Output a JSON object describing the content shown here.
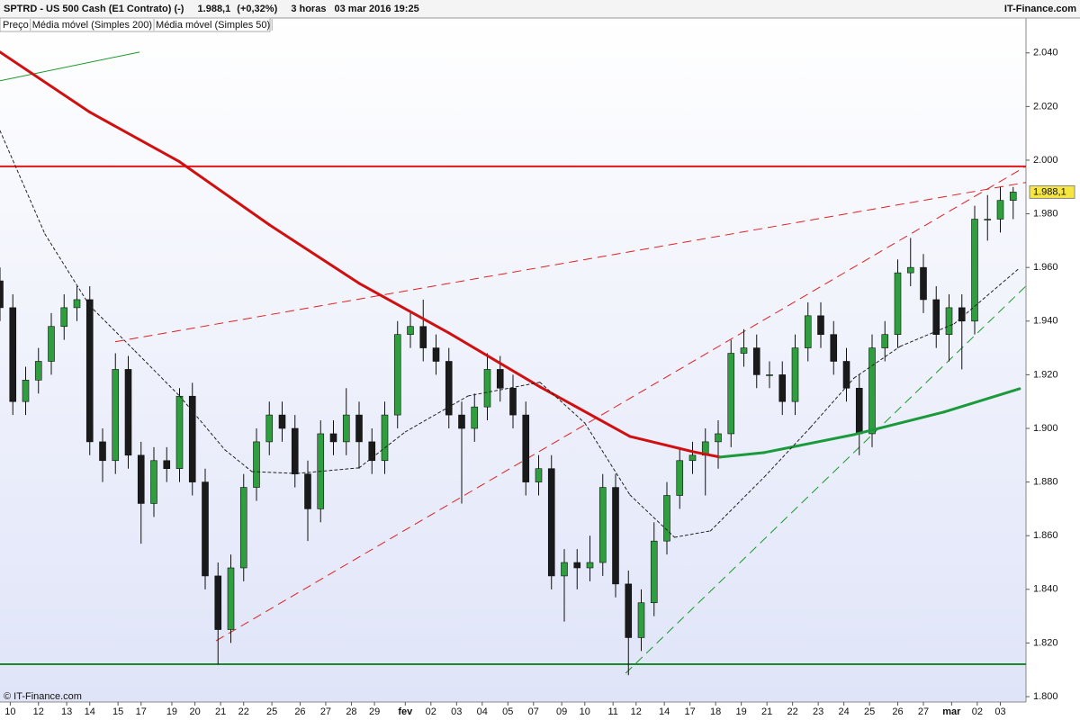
{
  "chart_data": {
    "type": "candlestick",
    "header": {
      "title": "SPTRD - US 500 Cash (E1 Contrato) (-)",
      "last": {
        "value": 1988.1,
        "label": "1.988,1"
      },
      "change": "(+0,32%)",
      "timeframe": "3 horas",
      "timestamp": "03 mar 2016 19:25",
      "brand": "IT-Finance.com"
    },
    "copyright": "© IT-Finance.com",
    "ylim": [
      1798,
      2053
    ],
    "yticks": [
      {
        "value": 1800,
        "label": "1.800"
      },
      {
        "value": 1820,
        "label": "1.820"
      },
      {
        "value": 1840,
        "label": "1.840"
      },
      {
        "value": 1860,
        "label": "1.860"
      },
      {
        "value": 1880,
        "label": "1.880"
      },
      {
        "value": 1900,
        "label": "1.900"
      },
      {
        "value": 1920,
        "label": "1.920"
      },
      {
        "value": 1940,
        "label": "1.940"
      },
      {
        "value": 1960,
        "label": "1.960"
      },
      {
        "value": 1980,
        "label": "1.980"
      },
      {
        "value": 2000,
        "label": "2.000"
      },
      {
        "value": 2020,
        "label": "2.020"
      },
      {
        "value": 2040,
        "label": "2.040"
      }
    ],
    "xlim": [
      0,
      40
    ],
    "xticks": [
      {
        "value": 0.4,
        "label": "10"
      },
      {
        "value": 1.5,
        "label": "12"
      },
      {
        "value": 2.6,
        "label": "13"
      },
      {
        "value": 3.5,
        "label": "14"
      },
      {
        "value": 4.6,
        "label": "15"
      },
      {
        "value": 5.5,
        "label": "17"
      },
      {
        "value": 6.7,
        "label": "19"
      },
      {
        "value": 7.6,
        "label": "20"
      },
      {
        "value": 8.6,
        "label": "21"
      },
      {
        "value": 9.5,
        "label": "22"
      },
      {
        "value": 10.6,
        "label": "25"
      },
      {
        "value": 11.7,
        "label": "26"
      },
      {
        "value": 12.7,
        "label": "27"
      },
      {
        "value": 13.7,
        "label": "28"
      },
      {
        "value": 14.6,
        "label": "29"
      },
      {
        "value": 15.8,
        "label": "fev"
      },
      {
        "value": 16.8,
        "label": "02"
      },
      {
        "value": 17.8,
        "label": "03"
      },
      {
        "value": 18.8,
        "label": "04"
      },
      {
        "value": 19.8,
        "label": "05"
      },
      {
        "value": 20.8,
        "label": "07"
      },
      {
        "value": 21.9,
        "label": "09"
      },
      {
        "value": 22.8,
        "label": "10"
      },
      {
        "value": 23.9,
        "label": "11"
      },
      {
        "value": 24.8,
        "label": "12"
      },
      {
        "value": 25.9,
        "label": "14"
      },
      {
        "value": 26.9,
        "label": "17"
      },
      {
        "value": 27.9,
        "label": "18"
      },
      {
        "value": 28.9,
        "label": "19"
      },
      {
        "value": 29.9,
        "label": "21"
      },
      {
        "value": 30.9,
        "label": "22"
      },
      {
        "value": 31.9,
        "label": "23"
      },
      {
        "value": 32.9,
        "label": "24"
      },
      {
        "value": 33.9,
        "label": "25"
      },
      {
        "value": 35.0,
        "label": "26"
      },
      {
        "value": 36.0,
        "label": "27"
      },
      {
        "value": 37.1,
        "label": "mar"
      },
      {
        "value": 38.1,
        "label": "02"
      },
      {
        "value": 39.0,
        "label": "03"
      }
    ],
    "ohlc": {
      "name": "Preço",
      "up_color": "#2e9e3e",
      "down_color": "#1a1a1a",
      "x": [
        0,
        0.5,
        1,
        1.5,
        2,
        2.5,
        3,
        3.5,
        4,
        4.5,
        5,
        5.5,
        6,
        6.5,
        7,
        7.5,
        8,
        8.5,
        9,
        9.5,
        10,
        10.5,
        11,
        11.5,
        12,
        12.5,
        13,
        13.5,
        14,
        14.5,
        15,
        15.5,
        16,
        16.5,
        17,
        17.5,
        18,
        18.5,
        19,
        19.5,
        20,
        20.5,
        21,
        21.5,
        22,
        22.5,
        23,
        23.5,
        24,
        24.5,
        25,
        25.5,
        26,
        26.5,
        27,
        27.5,
        28,
        28.5,
        29,
        29.5,
        30,
        30.5,
        31,
        31.5,
        32,
        32.5,
        33,
        33.5,
        34,
        34.5,
        35,
        35.5,
        36,
        36.5,
        37,
        37.5,
        38,
        38.5,
        39,
        39.5
      ],
      "open": [
        1955,
        1945,
        1910,
        1918,
        1925,
        1938,
        1945,
        1948,
        1895,
        1888,
        1922,
        1890,
        1872,
        1888,
        1885,
        1912,
        1880,
        1845,
        1825,
        1848,
        1878,
        1895,
        1905,
        1900,
        1883,
        1870,
        1898,
        1895,
        1905,
        1895,
        1888,
        1905,
        1935,
        1938,
        1930,
        1925,
        1905,
        1900,
        1908,
        1922,
        1915,
        1905,
        1880,
        1885,
        1845,
        1850,
        1848,
        1850,
        1878,
        1842,
        1822,
        1835,
        1858,
        1875,
        1888,
        1890,
        1895,
        1898,
        1928,
        1930,
        1920,
        1920,
        1910,
        1930,
        1942,
        1935,
        1925,
        1915,
        1898,
        1930,
        1935,
        1958,
        1960,
        1948,
        1935,
        1945,
        1940,
        1978,
        1978,
        1985
      ],
      "high": [
        1960,
        1950,
        1923,
        1930,
        1943,
        1950,
        1953,
        1953,
        1900,
        1928,
        1927,
        1895,
        1893,
        1893,
        1915,
        1917,
        1885,
        1850,
        1853,
        1883,
        1900,
        1910,
        1910,
        1905,
        1888,
        1903,
        1903,
        1915,
        1910,
        1900,
        1910,
        1940,
        1943,
        1948,
        1935,
        1930,
        1910,
        1913,
        1928,
        1927,
        1920,
        1910,
        1890,
        1890,
        1855,
        1855,
        1860,
        1883,
        1883,
        1847,
        1840,
        1865,
        1880,
        1893,
        1895,
        1900,
        1903,
        1933,
        1937,
        1935,
        1925,
        1925,
        1935,
        1947,
        1947,
        1940,
        1930,
        1920,
        1935,
        1940,
        1963,
        1971,
        1965,
        1953,
        1950,
        1950,
        1983,
        1987,
        1990,
        1990
      ],
      "low": [
        1940,
        1905,
        1905,
        1913,
        1920,
        1933,
        1940,
        1890,
        1880,
        1883,
        1885,
        1857,
        1867,
        1880,
        1880,
        1875,
        1840,
        1812,
        1820,
        1843,
        1873,
        1890,
        1895,
        1878,
        1858,
        1865,
        1890,
        1890,
        1885,
        1883,
        1883,
        1900,
        1930,
        1925,
        1920,
        1900,
        1872,
        1895,
        1903,
        1910,
        1900,
        1875,
        1875,
        1840,
        1828,
        1840,
        1843,
        1845,
        1837,
        1808,
        1817,
        1830,
        1853,
        1870,
        1883,
        1875,
        1885,
        1893,
        1923,
        1915,
        1915,
        1905,
        1905,
        1925,
        1930,
        1920,
        1910,
        1890,
        1893,
        1925,
        1930,
        1953,
        1943,
        1930,
        1925,
        1922,
        1935,
        1970,
        1973,
        1978
      ],
      "close": [
        1945,
        1910,
        1918,
        1925,
        1938,
        1945,
        1948,
        1895,
        1888,
        1922,
        1890,
        1872,
        1888,
        1885,
        1912,
        1880,
        1845,
        1825,
        1848,
        1878,
        1895,
        1905,
        1900,
        1883,
        1870,
        1898,
        1895,
        1905,
        1895,
        1888,
        1905,
        1935,
        1938,
        1930,
        1925,
        1905,
        1900,
        1908,
        1922,
        1915,
        1905,
        1880,
        1885,
        1845,
        1850,
        1848,
        1850,
        1878,
        1842,
        1822,
        1835,
        1858,
        1875,
        1888,
        1890,
        1895,
        1898,
        1928,
        1930,
        1920,
        1920,
        1910,
        1930,
        1942,
        1935,
        1925,
        1915,
        1898,
        1930,
        1935,
        1958,
        1960,
        1948,
        1935,
        1945,
        1940,
        1978,
        1978,
        1985,
        1988.1
      ]
    },
    "series": [
      {
        "name": "Média móvel (Simples 200)",
        "color": "#d01010",
        "rising_color": "#1a9a3a",
        "width": 3,
        "x": [
          0,
          3.5,
          7.0,
          10.5,
          14.0,
          17.5,
          21.05,
          24.56,
          27.02,
          28.07,
          29.8,
          33.3,
          36.8,
          39.75
        ],
        "values": [
          2040.3,
          2017.9,
          1999.4,
          1975.9,
          1954.1,
          1935.6,
          1915.5,
          1897.0,
          1891.3,
          1889.3,
          1891.0,
          1897.7,
          1906.1,
          1914.8
        ]
      },
      {
        "name": "Média móvel (Simples 50)",
        "color": "#222222",
        "dash": "3 3",
        "width": 1,
        "x": [
          0,
          1.75,
          3.5,
          5.26,
          7.0,
          8.77,
          9.82,
          11.58,
          14.0,
          15.8,
          18.25,
          21.05,
          22.8,
          24.56,
          26.3,
          27.7,
          29.8,
          31.6,
          33.3,
          35.1,
          37.2,
          39.75
        ],
        "values": [
          2011,
          1972.5,
          1945.7,
          1928.9,
          1912.1,
          1892,
          1883.9,
          1883.2,
          1885.3,
          1898.7,
          1912.1,
          1917.2,
          1902,
          1875.2,
          1859.4,
          1861.8,
          1881.9,
          1900.4,
          1918.8,
          1930.6,
          1939,
          1959.8
        ]
      }
    ],
    "trendlines": [
      {
        "color": "#e01818",
        "width": 2,
        "x": [
          0,
          40
        ],
        "values": [
          1997.7,
          1997.7
        ]
      },
      {
        "color": "#1a8a2a",
        "width": 2,
        "x": [
          0,
          40
        ],
        "values": [
          1812.1,
          1812.1
        ]
      },
      {
        "color": "#1a9a2a",
        "width": 1,
        "x": [
          0,
          5.44
        ],
        "values": [
          2029.6,
          2040.3
        ]
      },
      {
        "color": "#e02020",
        "width": 1,
        "dash": "10 6",
        "x": [
          4.49,
          40
        ],
        "values": [
          1932.3,
          1991.7
        ]
      },
      {
        "color": "#e02020",
        "width": 1,
        "dash": "10 6",
        "x": [
          8.42,
          40
        ],
        "values": [
          1820.8,
          1997.7
        ]
      },
      {
        "color": "#1a9a2a",
        "width": 1,
        "dash": "10 6",
        "x": [
          24.39,
          40
        ],
        "values": [
          1808.7,
          1953.1
        ]
      }
    ]
  }
}
